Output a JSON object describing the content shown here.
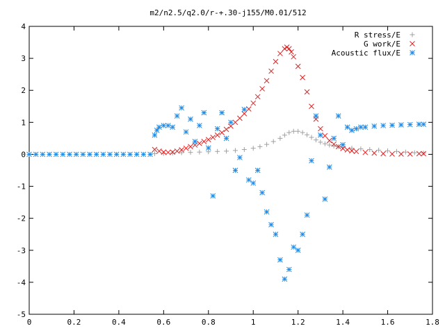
{
  "chart_data": {
    "type": "scatter",
    "title": "m2/n2.5/q2.0/r-+.30-j155/M0.01/512",
    "xlabel": "",
    "ylabel": "",
    "xlim": [
      0,
      1.8
    ],
    "ylim": [
      -5,
      4
    ],
    "x_ticks": [
      0,
      0.2,
      0.4,
      0.6,
      0.8,
      1,
      1.2,
      1.4,
      1.6,
      1.8
    ],
    "x_tick_labels": [
      "0",
      "0.2",
      "0.4",
      "0.6",
      "0.8",
      "1",
      "1.2",
      "1.4",
      "1.6",
      "1.8"
    ],
    "y_ticks": [
      -5,
      -4,
      -3,
      -2,
      -1,
      0,
      1,
      2,
      3,
      4
    ],
    "y_tick_labels": [
      "-5",
      "-4",
      "-3",
      "-2",
      "-1",
      "0",
      "1",
      "2",
      "3",
      "4"
    ],
    "grid": false,
    "legend": "top-right",
    "series": [
      {
        "name": "R stress/E",
        "marker": "plus",
        "color": "#a0a0a0",
        "x": [
          0.56,
          0.6,
          0.64,
          0.68,
          0.72,
          0.76,
          0.8,
          0.84,
          0.88,
          0.92,
          0.96,
          1.0,
          1.03,
          1.06,
          1.09,
          1.12,
          1.14,
          1.16,
          1.18,
          1.2,
          1.22,
          1.24,
          1.26,
          1.28,
          1.3,
          1.32,
          1.34,
          1.36,
          1.38,
          1.4,
          1.44,
          1.48,
          1.52,
          1.56,
          1.6,
          1.64,
          1.68,
          1.72,
          1.76
        ],
        "y": [
          0.02,
          0.03,
          0.04,
          0.05,
          0.06,
          0.07,
          0.08,
          0.09,
          0.1,
          0.12,
          0.15,
          0.19,
          0.24,
          0.31,
          0.4,
          0.5,
          0.6,
          0.68,
          0.72,
          0.72,
          0.68,
          0.61,
          0.53,
          0.45,
          0.38,
          0.33,
          0.29,
          0.26,
          0.24,
          0.22,
          0.19,
          0.17,
          0.15,
          0.13,
          0.11,
          0.09,
          0.07,
          0.05,
          0.04
        ]
      },
      {
        "name": "G work/E",
        "marker": "cross",
        "color": "#e02020",
        "x": [
          0.56,
          0.58,
          0.6,
          0.62,
          0.64,
          0.66,
          0.68,
          0.7,
          0.72,
          0.74,
          0.76,
          0.78,
          0.8,
          0.82,
          0.84,
          0.86,
          0.88,
          0.9,
          0.92,
          0.94,
          0.96,
          0.98,
          1.0,
          1.02,
          1.04,
          1.06,
          1.08,
          1.1,
          1.12,
          1.14,
          1.15,
          1.16,
          1.17,
          1.18,
          1.2,
          1.22,
          1.24,
          1.26,
          1.28,
          1.3,
          1.32,
          1.34,
          1.36,
          1.38,
          1.4,
          1.42,
          1.44,
          1.46,
          1.5,
          1.54,
          1.58,
          1.62,
          1.66,
          1.7,
          1.74,
          1.76
        ],
        "y": [
          0.15,
          0.1,
          0.07,
          0.06,
          0.07,
          0.1,
          0.14,
          0.19,
          0.24,
          0.29,
          0.34,
          0.4,
          0.46,
          0.53,
          0.6,
          0.68,
          0.78,
          0.88,
          1.0,
          1.13,
          1.27,
          1.42,
          1.6,
          1.8,
          2.05,
          2.3,
          2.6,
          2.9,
          3.15,
          3.3,
          3.35,
          3.3,
          3.2,
          3.05,
          2.75,
          2.4,
          1.95,
          1.5,
          1.1,
          0.8,
          0.58,
          0.43,
          0.32,
          0.24,
          0.18,
          0.14,
          0.11,
          0.09,
          0.06,
          0.04,
          0.02,
          0.01,
          0.01,
          0.01,
          0.02,
          0.02
        ]
      },
      {
        "name": "Acoustic flux/E",
        "marker": "star",
        "color": "#1f8ae6",
        "x": [
          0.0,
          0.03,
          0.06,
          0.09,
          0.12,
          0.15,
          0.18,
          0.21,
          0.24,
          0.27,
          0.3,
          0.33,
          0.36,
          0.39,
          0.42,
          0.45,
          0.48,
          0.51,
          0.54,
          0.56,
          0.57,
          0.58,
          0.6,
          0.62,
          0.64,
          0.66,
          0.68,
          0.7,
          0.72,
          0.74,
          0.76,
          0.78,
          0.8,
          0.82,
          0.84,
          0.86,
          0.88,
          0.9,
          0.92,
          0.94,
          0.96,
          0.98,
          1.0,
          1.02,
          1.04,
          1.06,
          1.08,
          1.1,
          1.12,
          1.14,
          1.16,
          1.18,
          1.2,
          1.22,
          1.24,
          1.26,
          1.28,
          1.3,
          1.32,
          1.34,
          1.36,
          1.38,
          1.4,
          1.42,
          1.44,
          1.46,
          1.48,
          1.5,
          1.54,
          1.58,
          1.62,
          1.66,
          1.7,
          1.74,
          1.76
        ],
        "y": [
          0.0,
          0.0,
          0.0,
          0.0,
          0.0,
          0.0,
          0.0,
          0.0,
          0.0,
          0.0,
          0.0,
          0.0,
          0.0,
          0.0,
          0.0,
          0.0,
          0.0,
          0.0,
          0.0,
          0.6,
          0.75,
          0.85,
          0.9,
          0.9,
          0.85,
          1.2,
          1.45,
          0.7,
          1.1,
          0.4,
          0.9,
          1.3,
          0.2,
          -1.3,
          0.8,
          1.3,
          0.5,
          1.0,
          -0.5,
          -0.1,
          1.4,
          -0.8,
          -0.9,
          -0.5,
          -1.2,
          -1.8,
          -2.2,
          -2.5,
          -3.3,
          -3.9,
          -3.6,
          -2.9,
          -3.0,
          -2.5,
          -1.9,
          -0.2,
          1.2,
          0.6,
          -1.4,
          -0.4,
          0.5,
          1.2,
          0.3,
          0.85,
          0.75,
          0.8,
          0.85,
          0.85,
          0.88,
          0.9,
          0.91,
          0.92,
          0.93,
          0.94,
          0.94
        ]
      }
    ]
  }
}
